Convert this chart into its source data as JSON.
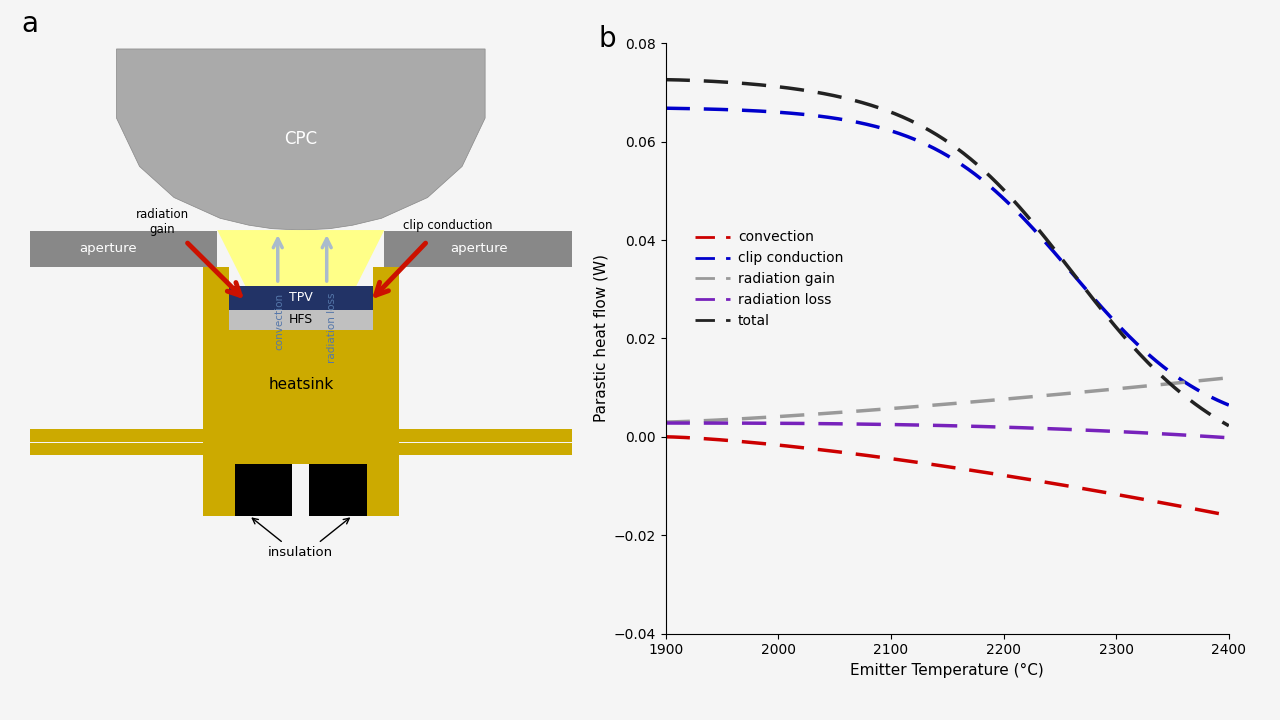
{
  "panel_a_label": "a",
  "panel_b_label": "b",
  "background_color": "#f5f5f5",
  "graph_xlim": [
    1900,
    2400
  ],
  "graph_ylim": [
    -0.04,
    0.08
  ],
  "graph_xlabel": "Emitter Temperature (°C)",
  "graph_ylabel": "Parastic heat flow (W)",
  "graph_xticks": [
    1900,
    2000,
    2100,
    2200,
    2300,
    2400
  ],
  "graph_yticks": [
    -0.04,
    -0.02,
    0.0,
    0.02,
    0.04,
    0.06,
    0.08
  ],
  "convection_color": "#cc0000",
  "clip_conduction_color": "#0000cc",
  "radiation_gain_color": "#999999",
  "radiation_loss_color": "#7722bb",
  "total_color": "#222222",
  "colors": {
    "gold": "#ccaa00",
    "gray_aperture": "#888888",
    "dark_blue_tpv": "#223366",
    "light_gray_hfs": "#bbbbbb",
    "black": "#111111",
    "red_arrow": "#cc1100",
    "light_blue_arrow": "#aabbcc",
    "yellow_beam": "#ffff88",
    "cpc_gray": "#aaaaaa",
    "white": "#ffffff"
  }
}
